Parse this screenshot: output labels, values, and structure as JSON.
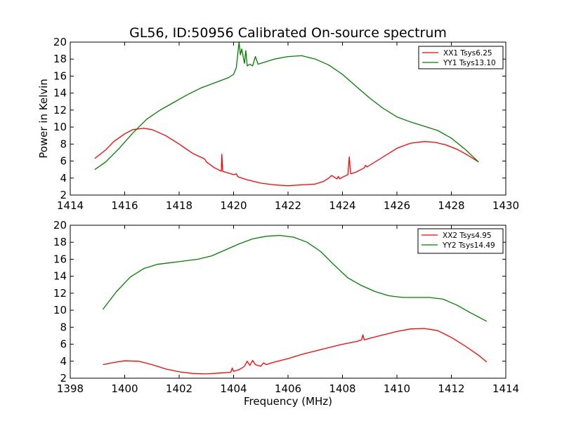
{
  "chart_data": [
    {
      "type": "line",
      "title": "GL56, ID:50956 Calibrated On-source spectrum",
      "xlabel": "",
      "ylabel": "Power in Kelvin",
      "xlim": [
        1414,
        1430
      ],
      "ylim": [
        2,
        20
      ],
      "xticks": [
        "1414",
        "1416",
        "1418",
        "1420",
        "1422",
        "1424",
        "1426",
        "1428",
        "1430"
      ],
      "yticks": [
        "2",
        "4",
        "6",
        "8",
        "10",
        "12",
        "14",
        "16",
        "18",
        "20"
      ],
      "grid": false,
      "legend_position": "top-right",
      "series": [
        {
          "name": "XX1 Tsys6.25",
          "color": "#ff0000",
          "x": [
            1414.9,
            1415.3,
            1415.6,
            1416.0,
            1416.3,
            1416.7,
            1417.0,
            1417.5,
            1418.0,
            1418.5,
            1418.9,
            1418.95,
            1419.0,
            1419.3,
            1419.55,
            1419.57,
            1419.6,
            1419.8,
            1420.0,
            1420.1,
            1420.15,
            1420.2,
            1420.5,
            1421.0,
            1421.5,
            1422.0,
            1422.5,
            1423.0,
            1423.3,
            1423.5,
            1423.6,
            1423.7,
            1423.8,
            1423.85,
            1423.9,
            1424.0,
            1424.2,
            1424.25,
            1424.3,
            1424.5,
            1424.8,
            1424.85,
            1424.9,
            1425.5,
            1426.0,
            1426.5,
            1427.0,
            1427.4,
            1427.8,
            1428.2,
            1428.6,
            1429.0
          ],
          "y": [
            6.3,
            7.3,
            8.3,
            9.2,
            9.7,
            9.85,
            9.7,
            9.0,
            8.0,
            6.9,
            6.3,
            6.2,
            5.9,
            5.2,
            4.8,
            6.8,
            4.8,
            4.6,
            4.4,
            4.5,
            4.2,
            4.1,
            3.8,
            3.4,
            3.2,
            3.1,
            3.2,
            3.3,
            3.6,
            4.0,
            4.3,
            4.1,
            3.9,
            4.2,
            3.9,
            4.1,
            4.4,
            6.5,
            4.5,
            4.7,
            5.2,
            5.5,
            5.3,
            6.5,
            7.5,
            8.1,
            8.3,
            8.2,
            7.9,
            7.4,
            6.7,
            5.9
          ]
        },
        {
          "name": "YY1 Tsys13.10",
          "color": "#008000",
          "x": [
            1414.9,
            1415.3,
            1415.8,
            1416.3,
            1416.8,
            1417.3,
            1417.8,
            1418.3,
            1418.8,
            1419.3,
            1419.8,
            1420.0,
            1420.1,
            1420.2,
            1420.25,
            1420.3,
            1420.4,
            1420.45,
            1420.5,
            1420.6,
            1420.7,
            1420.8,
            1420.9,
            1421.0,
            1421.5,
            1422.0,
            1422.5,
            1423.0,
            1423.5,
            1424.0,
            1424.5,
            1425.0,
            1425.5,
            1426.0,
            1426.5,
            1427.0,
            1427.5,
            1428.0,
            1428.5,
            1429.0
          ],
          "y": [
            5.0,
            5.9,
            7.5,
            9.3,
            10.9,
            12.0,
            12.9,
            13.8,
            14.6,
            15.2,
            15.8,
            16.2,
            17.0,
            20.0,
            18.5,
            19.2,
            17.5,
            19.0,
            17.2,
            17.4,
            17.2,
            18.3,
            17.4,
            17.5,
            18.0,
            18.3,
            18.4,
            18.0,
            17.3,
            16.2,
            14.8,
            13.4,
            12.2,
            11.2,
            10.6,
            10.1,
            9.6,
            8.7,
            7.4,
            5.9
          ]
        }
      ]
    },
    {
      "type": "line",
      "title": "",
      "xlabel": "Frequency (MHz)",
      "ylabel": "",
      "xlim": [
        1398,
        1414
      ],
      "ylim": [
        2,
        20
      ],
      "xticks": [
        "1398",
        "1400",
        "1402",
        "1404",
        "1406",
        "1408",
        "1410",
        "1412",
        "1414"
      ],
      "yticks": [
        "2",
        "4",
        "6",
        "8",
        "10",
        "12",
        "14",
        "16",
        "18",
        "20"
      ],
      "grid": false,
      "legend_position": "top-right",
      "series": [
        {
          "name": "XX2 Tsys4.95",
          "color": "#ff0000",
          "x": [
            1399.2,
            1399.6,
            1400.0,
            1400.5,
            1401.0,
            1401.5,
            1402.0,
            1402.5,
            1403.0,
            1403.5,
            1403.9,
            1403.95,
            1404.0,
            1404.2,
            1404.4,
            1404.5,
            1404.6,
            1404.7,
            1404.8,
            1405.0,
            1405.1,
            1405.2,
            1405.5,
            1406.0,
            1406.5,
            1407.0,
            1407.5,
            1408.0,
            1408.5,
            1408.7,
            1408.75,
            1408.8,
            1409.0,
            1409.5,
            1410.0,
            1410.5,
            1411.0,
            1411.5,
            1412.0,
            1412.5,
            1413.0,
            1413.3
          ],
          "y": [
            3.6,
            3.85,
            4.05,
            4.0,
            3.6,
            3.1,
            2.75,
            2.55,
            2.5,
            2.6,
            2.7,
            3.2,
            2.8,
            3.0,
            3.4,
            4.0,
            3.5,
            4.1,
            3.6,
            3.4,
            3.8,
            3.6,
            3.9,
            4.3,
            4.8,
            5.2,
            5.6,
            6.0,
            6.3,
            6.5,
            7.1,
            6.5,
            6.7,
            7.1,
            7.5,
            7.8,
            7.85,
            7.6,
            6.8,
            5.8,
            4.7,
            3.9
          ]
        },
        {
          "name": "YY2 Tsys14.49",
          "color": "#008000",
          "x": [
            1399.2,
            1399.7,
            1400.2,
            1400.7,
            1401.2,
            1401.7,
            1402.2,
            1402.7,
            1403.2,
            1403.7,
            1404.2,
            1404.7,
            1405.2,
            1405.7,
            1406.2,
            1406.7,
            1407.2,
            1407.7,
            1408.2,
            1408.7,
            1409.2,
            1409.7,
            1410.2,
            1410.7,
            1411.2,
            1411.7,
            1412.2,
            1412.7,
            1413.3
          ],
          "y": [
            10.1,
            12.2,
            13.9,
            14.9,
            15.4,
            15.6,
            15.8,
            16.0,
            16.4,
            17.1,
            17.8,
            18.4,
            18.7,
            18.8,
            18.6,
            18.0,
            16.9,
            15.3,
            13.8,
            12.9,
            12.2,
            11.7,
            11.5,
            11.5,
            11.5,
            11.3,
            10.6,
            9.7,
            8.7
          ]
        }
      ]
    }
  ]
}
